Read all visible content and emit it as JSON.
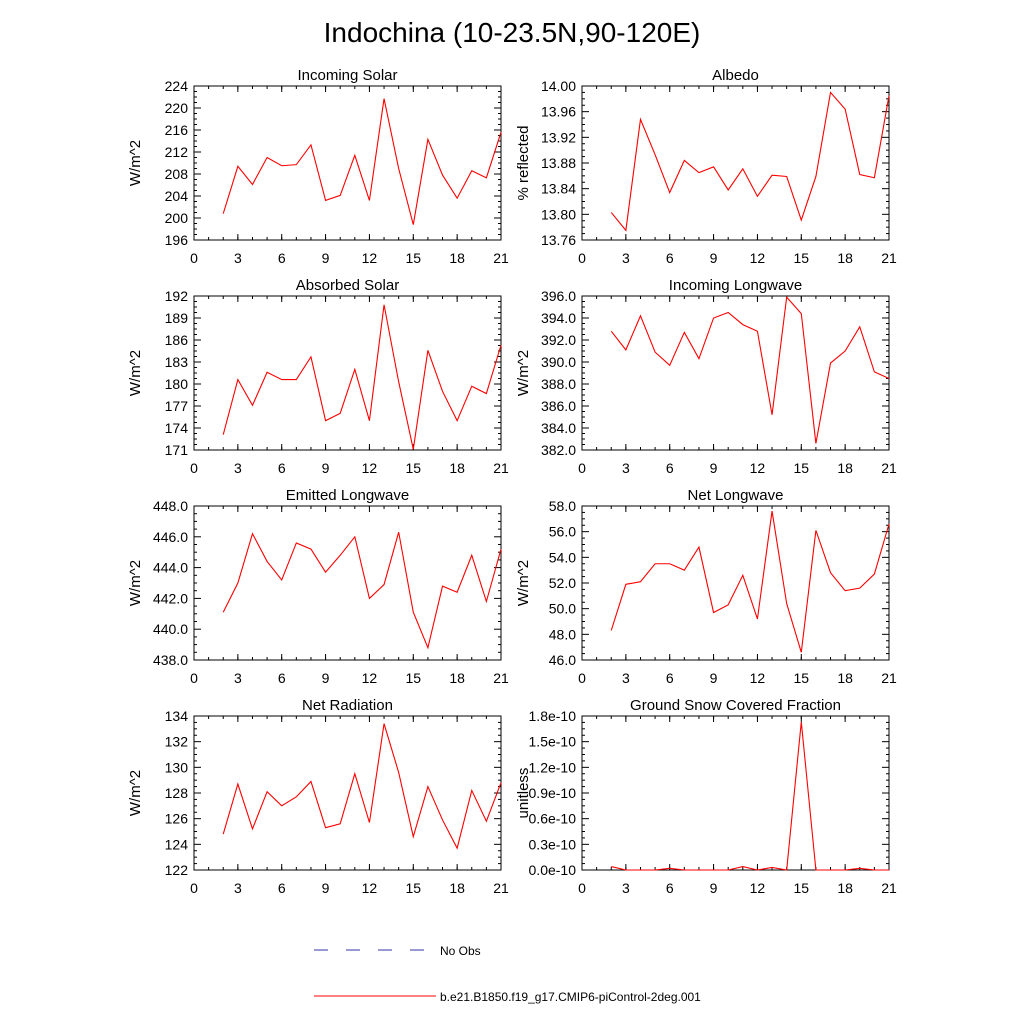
{
  "page_title": "Indochina (10-23.5N,90-120E)",
  "legend": {
    "entries": [
      {
        "label": "No Obs",
        "color": "#3333aa",
        "style": "dashed"
      },
      {
        "label": "b.e21.B1850.f19_g17.CMIP6-piControl-2deg.001",
        "color": "#ff0000",
        "style": "solid"
      }
    ]
  },
  "colors": {
    "series": "#ff0000",
    "axis": "#000000",
    "obs": "#3333aa"
  },
  "chart_data": [
    {
      "type": "line",
      "title": "Incoming Solar",
      "xlabel": "",
      "ylabel": "W/m^2",
      "xlim": [
        0,
        21
      ],
      "xticks": [
        0,
        3,
        6,
        9,
        12,
        15,
        18,
        21
      ],
      "xtick_labels": [
        "0",
        "3",
        "6",
        "9",
        "12",
        "15",
        "18",
        "21"
      ],
      "ylim": [
        196,
        224
      ],
      "yticks": [
        196,
        200,
        204,
        208,
        212,
        216,
        220,
        224
      ],
      "ytick_labels": [
        "196",
        "200",
        "204",
        "208",
        "212",
        "216",
        "220",
        "224"
      ],
      "series": [
        {
          "name": "b.e21.B1850.f19_g17.CMIP6-piControl-2deg.001",
          "x": [
            2,
            3,
            4,
            5,
            6,
            7,
            8,
            9,
            10,
            11,
            12,
            13,
            14,
            15,
            16,
            17,
            18,
            19,
            20,
            21
          ],
          "values": [
            200.8,
            209.4,
            206.1,
            211.0,
            209.5,
            209.7,
            213.3,
            203.2,
            204.1,
            211.4,
            203.2,
            221.7,
            209.0,
            198.8,
            214.3,
            207.8,
            203.6,
            208.6,
            207.3,
            215.6
          ]
        }
      ]
    },
    {
      "type": "line",
      "title": "Albedo",
      "xlabel": "",
      "ylabel": "% reflected",
      "xlim": [
        0,
        21
      ],
      "xticks": [
        0,
        3,
        6,
        9,
        12,
        15,
        18,
        21
      ],
      "xtick_labels": [
        "0",
        "3",
        "6",
        "9",
        "12",
        "15",
        "18",
        "21"
      ],
      "ylim": [
        13.76,
        14.0
      ],
      "yticks": [
        13.76,
        13.8,
        13.84,
        13.88,
        13.92,
        13.96,
        14.0
      ],
      "ytick_labels": [
        "13.76",
        "13.80",
        "13.84",
        "13.88",
        "13.92",
        "13.96",
        "14.00"
      ],
      "series": [
        {
          "name": "b.e21.B1850.f19_g17.CMIP6-piControl-2deg.001",
          "x": [
            2,
            3,
            4,
            5,
            6,
            7,
            8,
            9,
            10,
            11,
            12,
            13,
            14,
            15,
            16,
            17,
            18,
            19,
            20,
            21
          ],
          "values": [
            13.803,
            13.775,
            13.948,
            13.893,
            13.834,
            13.884,
            13.865,
            13.874,
            13.838,
            13.871,
            13.828,
            13.861,
            13.859,
            13.791,
            13.859,
            13.99,
            13.964,
            13.862,
            13.857,
            13.985
          ]
        }
      ]
    },
    {
      "type": "line",
      "title": "Absorbed Solar",
      "xlabel": "",
      "ylabel": "W/m^2",
      "xlim": [
        0,
        21
      ],
      "xticks": [
        0,
        3,
        6,
        9,
        12,
        15,
        18,
        21
      ],
      "xtick_labels": [
        "0",
        "3",
        "6",
        "9",
        "12",
        "15",
        "18",
        "21"
      ],
      "ylim": [
        171,
        192
      ],
      "yticks": [
        171,
        174,
        177,
        180,
        183,
        186,
        189,
        192
      ],
      "ytick_labels": [
        "171",
        "174",
        "177",
        "180",
        "183",
        "186",
        "189",
        "192"
      ],
      "series": [
        {
          "name": "b.e21.B1850.f19_g17.CMIP6-piControl-2deg.001",
          "x": [
            2,
            3,
            4,
            5,
            6,
            7,
            8,
            9,
            10,
            11,
            12,
            13,
            14,
            15,
            16,
            17,
            18,
            19,
            20,
            21
          ],
          "values": [
            173.1,
            180.6,
            177.1,
            181.6,
            180.6,
            180.6,
            183.7,
            175.0,
            176.0,
            182.0,
            175.0,
            190.8,
            180.3,
            171.1,
            184.6,
            179.0,
            175.0,
            179.7,
            178.7,
            185.3
          ]
        }
      ]
    },
    {
      "type": "line",
      "title": "Incoming Longwave",
      "xlabel": "",
      "ylabel": "W/m^2",
      "xlim": [
        0,
        21
      ],
      "xticks": [
        0,
        3,
        6,
        9,
        12,
        15,
        18,
        21
      ],
      "xtick_labels": [
        "0",
        "3",
        "6",
        "9",
        "12",
        "15",
        "18",
        "21"
      ],
      "ylim": [
        382,
        396
      ],
      "yticks": [
        382,
        384,
        386,
        388,
        390,
        392,
        394,
        396
      ],
      "ytick_labels": [
        "382.0",
        "384.0",
        "386.0",
        "388.0",
        "390.0",
        "392.0",
        "394.0",
        "396.0"
      ],
      "series": [
        {
          "name": "b.e21.B1850.f19_g17.CMIP6-piControl-2deg.001",
          "x": [
            2,
            3,
            4,
            5,
            6,
            7,
            8,
            9,
            10,
            11,
            12,
            13,
            14,
            15,
            16,
            17,
            18,
            19,
            20,
            21
          ],
          "values": [
            392.8,
            391.1,
            394.2,
            390.9,
            389.7,
            392.7,
            390.3,
            394.0,
            394.5,
            393.4,
            392.8,
            385.2,
            395.9,
            394.4,
            382.6,
            389.9,
            391.0,
            393.2,
            389.1,
            388.5
          ]
        }
      ]
    },
    {
      "type": "line",
      "title": "Emitted Longwave",
      "xlabel": "",
      "ylabel": "W/m^2",
      "xlim": [
        0,
        21
      ],
      "xticks": [
        0,
        3,
        6,
        9,
        12,
        15,
        18,
        21
      ],
      "xtick_labels": [
        "0",
        "3",
        "6",
        "9",
        "12",
        "15",
        "18",
        "21"
      ],
      "ylim": [
        438,
        448
      ],
      "yticks": [
        438,
        440,
        442,
        444,
        446,
        448
      ],
      "ytick_labels": [
        "438.0",
        "440.0",
        "442.0",
        "444.0",
        "446.0",
        "448.0"
      ],
      "series": [
        {
          "name": "b.e21.B1850.f19_g17.CMIP6-piControl-2deg.001",
          "x": [
            2,
            3,
            4,
            5,
            6,
            7,
            8,
            9,
            10,
            11,
            12,
            13,
            14,
            15,
            16,
            17,
            18,
            19,
            20,
            21
          ],
          "values": [
            441.1,
            443.0,
            446.2,
            444.4,
            443.2,
            445.6,
            445.2,
            443.7,
            444.8,
            446.0,
            442.0,
            442.9,
            446.3,
            441.1,
            438.8,
            442.8,
            442.4,
            444.8,
            441.8,
            445.2
          ]
        }
      ]
    },
    {
      "type": "line",
      "title": "Net Longwave",
      "xlabel": "",
      "ylabel": "W/m^2",
      "xlim": [
        0,
        21
      ],
      "xticks": [
        0,
        3,
        6,
        9,
        12,
        15,
        18,
        21
      ],
      "xtick_labels": [
        "0",
        "3",
        "6",
        "9",
        "12",
        "15",
        "18",
        "21"
      ],
      "ylim": [
        46,
        58
      ],
      "yticks": [
        46,
        48,
        50,
        52,
        54,
        56,
        58
      ],
      "ytick_labels": [
        "46.0",
        "48.0",
        "50.0",
        "52.0",
        "54.0",
        "56.0",
        "58.0"
      ],
      "series": [
        {
          "name": "b.e21.B1850.f19_g17.CMIP6-piControl-2deg.001",
          "x": [
            2,
            3,
            4,
            5,
            6,
            7,
            8,
            9,
            10,
            11,
            12,
            13,
            14,
            15,
            16,
            17,
            18,
            19,
            20,
            21
          ],
          "values": [
            48.3,
            51.9,
            52.1,
            53.5,
            53.5,
            53.0,
            54.8,
            49.7,
            50.3,
            52.6,
            49.2,
            57.6,
            50.4,
            46.6,
            56.1,
            52.8,
            51.4,
            51.6,
            52.7,
            56.6
          ]
        }
      ]
    },
    {
      "type": "line",
      "title": "Net Radiation",
      "xlabel": "",
      "ylabel": "W/m^2",
      "xlim": [
        0,
        21
      ],
      "xticks": [
        0,
        3,
        6,
        9,
        12,
        15,
        18,
        21
      ],
      "xtick_labels": [
        "0",
        "3",
        "6",
        "9",
        "12",
        "15",
        "18",
        "21"
      ],
      "ylim": [
        122,
        134
      ],
      "yticks": [
        122,
        124,
        126,
        128,
        130,
        132,
        134
      ],
      "ytick_labels": [
        "122",
        "124",
        "126",
        "128",
        "130",
        "132",
        "134"
      ],
      "series": [
        {
          "name": "b.e21.B1850.f19_g17.CMIP6-piControl-2deg.001",
          "x": [
            2,
            3,
            4,
            5,
            6,
            7,
            8,
            9,
            10,
            11,
            12,
            13,
            14,
            15,
            16,
            17,
            18,
            19,
            20,
            21
          ],
          "values": [
            124.8,
            128.7,
            125.2,
            128.1,
            127.0,
            127.7,
            128.9,
            125.3,
            125.6,
            129.5,
            125.7,
            133.4,
            129.6,
            124.6,
            128.5,
            125.9,
            123.7,
            128.2,
            125.8,
            128.8
          ]
        }
      ]
    },
    {
      "type": "line",
      "title": "Ground Snow Covered Fraction",
      "xlabel": "",
      "ylabel": "unitless",
      "xlim": [
        0,
        21
      ],
      "xticks": [
        0,
        3,
        6,
        9,
        12,
        15,
        18,
        21
      ],
      "xtick_labels": [
        "0",
        "3",
        "6",
        "9",
        "12",
        "15",
        "18",
        "21"
      ],
      "ylim": [
        0,
        1.8e-10
      ],
      "yticks": [
        0,
        3e-11,
        6e-11,
        9e-11,
        1.2e-10,
        1.5e-10,
        1.8e-10
      ],
      "ytick_labels": [
        "0.0e-10",
        "0.3e-10",
        "0.6e-10",
        "0.9e-10",
        "1.2e-10",
        "1.5e-10",
        "1.8e-10"
      ],
      "series": [
        {
          "name": "b.e21.B1850.f19_g17.CMIP6-piControl-2deg.001",
          "x": [
            2,
            3,
            4,
            5,
            6,
            7,
            8,
            9,
            10,
            11,
            12,
            13,
            14,
            15,
            16,
            17,
            18,
            19,
            20,
            21
          ],
          "values": [
            4e-12,
            0,
            0,
            0,
            2e-12,
            0,
            0,
            0,
            0,
            4e-12,
            0,
            3e-12,
            0,
            1.73e-10,
            0,
            0,
            0,
            2e-12,
            0,
            0
          ]
        }
      ]
    }
  ]
}
